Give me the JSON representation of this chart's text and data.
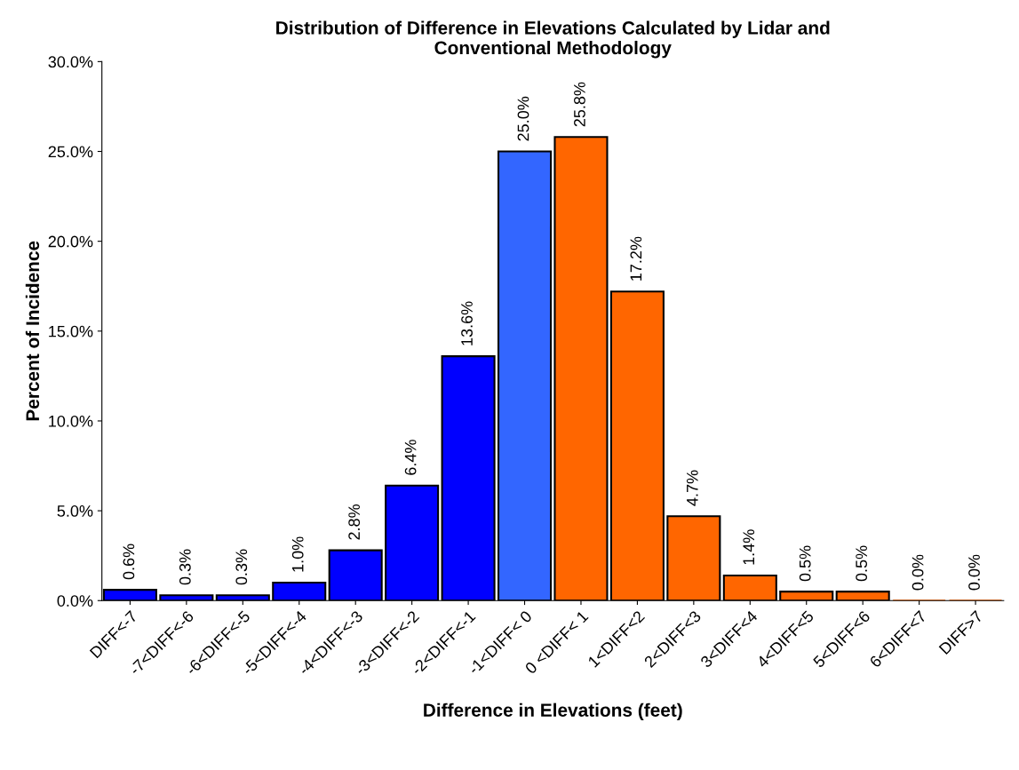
{
  "chart_data": {
    "type": "bar",
    "title": "Distribution of Difference in Elevations Calculated by Lidar and\nConventional Methodology",
    "xlabel": "Difference in Elevations (feet)",
    "ylabel": "Percent of Incidence",
    "categories": [
      "DIFF<-7",
      "-7<DIFF<-6",
      "-6<DIFF<-5",
      "-5<DIFF<-4",
      "-4<DIFF<-3",
      "-3<DIFF<-2",
      "-2<DIFF<-1",
      "-1<DIFF< 0",
      "0 <DIFF< 1",
      "1<DIFF<2",
      "2<DIFF<3",
      "3<DIFF<4",
      "4<DIFF<5",
      "5<DIFF<6",
      "6<DIFF<7",
      "DIFF>7"
    ],
    "values": [
      0.6,
      0.3,
      0.3,
      1.0,
      2.8,
      6.4,
      13.6,
      25.0,
      25.8,
      17.2,
      4.7,
      1.4,
      0.5,
      0.5,
      0.0,
      0.0
    ],
    "value_labels": [
      "0.6%",
      "0.3%",
      "0.3%",
      "1.0%",
      "2.8%",
      "6.4%",
      "13.6%",
      "25.0%",
      "25.8%",
      "17.2%",
      "4.7%",
      "1.4%",
      "0.5%",
      "0.5%",
      "0.0%",
      "0.0%"
    ],
    "colors": [
      "#0000ff",
      "#0000ff",
      "#0000ff",
      "#0000ff",
      "#0000ff",
      "#0000ff",
      "#0000ff",
      "#3366ff",
      "#ff6600",
      "#ff6600",
      "#ff6600",
      "#ff6600",
      "#ff6600",
      "#ff6600",
      "#ff6600",
      "#ff6600"
    ],
    "ylim": [
      0,
      30
    ],
    "yticks": [
      {
        "value": 0,
        "label": "0.0%"
      },
      {
        "value": 5,
        "label": "5.0%"
      },
      {
        "value": 10,
        "label": "10.0%"
      },
      {
        "value": 15,
        "label": "15.0%"
      },
      {
        "value": 20,
        "label": "20.0%"
      },
      {
        "value": 25,
        "label": "25.0%"
      },
      {
        "value": 30,
        "label": "30.0%"
      }
    ],
    "grid": false,
    "legend": false
  }
}
